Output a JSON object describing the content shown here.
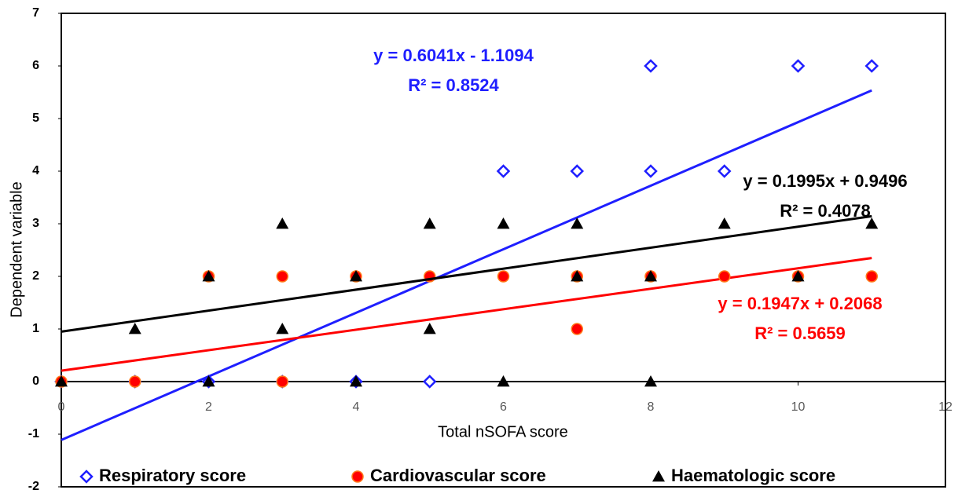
{
  "chart_data": {
    "type": "scatter",
    "x_label": "Total nSOFA score",
    "y_label": "Dependent variable",
    "xlim": [
      0,
      12
    ],
    "xticks": [
      0,
      2,
      4,
      6,
      8,
      10,
      12
    ],
    "ylim": [
      -2,
      7
    ],
    "yticks": [
      -2,
      -1,
      0,
      1,
      2,
      3,
      4,
      5,
      6,
      7
    ],
    "series": [
      {
        "name": "Respiratory  score",
        "color": "#1f1fff",
        "marker": "diamond",
        "x": [
          0,
          1,
          2,
          3,
          4,
          5,
          6,
          7,
          8,
          8,
          9,
          10,
          11
        ],
        "values": [
          0,
          0,
          0,
          0,
          0,
          0,
          4,
          4,
          6,
          4,
          4,
          6,
          6
        ],
        "trendline": {
          "slope": 0.6041,
          "intercept": -1.1094,
          "equation": "y = 0.6041x - 1.1094",
          "r2": "R² = 0.8524"
        }
      },
      {
        "name": "Cardiovascular score",
        "color": "#ff0000",
        "marker": "circle",
        "x": [
          0,
          1,
          2,
          3,
          3,
          4,
          5,
          6,
          7,
          7,
          8,
          9,
          10,
          11
        ],
        "values": [
          0,
          0,
          2,
          2,
          0,
          2,
          2,
          2,
          2,
          1,
          2,
          2,
          2,
          2
        ],
        "trendline": {
          "slope": 0.1947,
          "intercept": 0.2068,
          "equation": "y = 0.1947x + 0.2068",
          "r2": "R² = 0.5659"
        }
      },
      {
        "name": "Haematologic score",
        "color": "#000000",
        "marker": "triangle",
        "x": [
          0,
          1,
          2,
          2,
          3,
          3,
          4,
          4,
          5,
          5,
          6,
          6,
          7,
          7,
          8,
          8,
          9,
          10,
          11
        ],
        "values": [
          0,
          1,
          2,
          0,
          3,
          1,
          2,
          0,
          3,
          1,
          3,
          0,
          3,
          2,
          2,
          0,
          3,
          2,
          3
        ],
        "trendline": {
          "slope": 0.1995,
          "intercept": 0.9496,
          "equation": "y = 0.1995x + 0.9496",
          "r2": "R² = 0.4078"
        }
      }
    ]
  }
}
